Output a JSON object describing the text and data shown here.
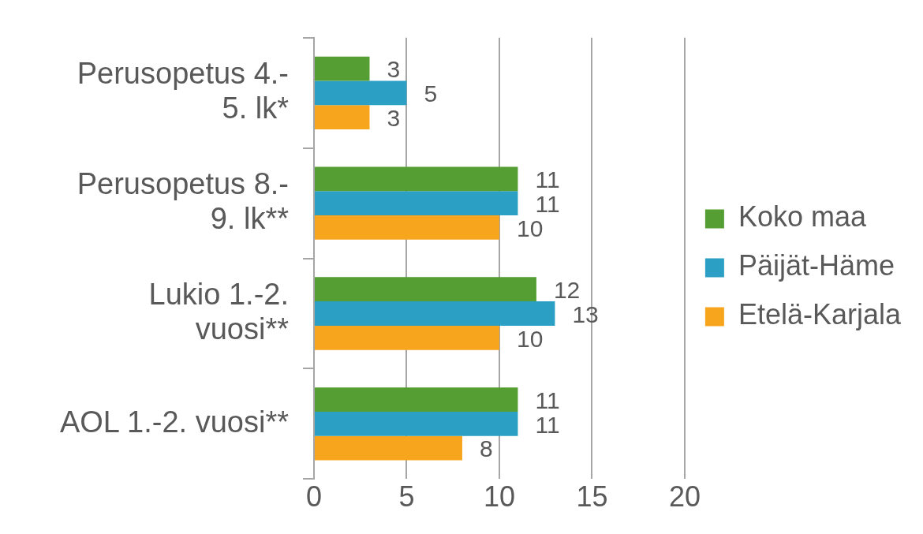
{
  "chart_data": {
    "type": "bar",
    "orientation": "horizontal",
    "categories": [
      "Perusopetus 4.- 5. lk*",
      "Perusopetus 8.- 9. lk**",
      "Lukio 1.-2. vuosi**",
      "AOL 1.-2. vuosi**"
    ],
    "series": [
      {
        "name": "Koko maa",
        "color": "#559e33",
        "values": [
          3,
          11,
          12,
          11
        ]
      },
      {
        "name": "Päijät-Häme",
        "color": "#2ba0c4",
        "values": [
          5,
          11,
          13,
          11
        ]
      },
      {
        "name": "Etelä-Karjala",
        "color": "#f7a51c",
        "values": [
          3,
          10,
          10,
          8
        ]
      }
    ],
    "xlim": [
      0,
      20
    ],
    "xticks": [
      0,
      5,
      10,
      15,
      20
    ],
    "grid": "x",
    "legend": "right",
    "data_labels": true
  }
}
